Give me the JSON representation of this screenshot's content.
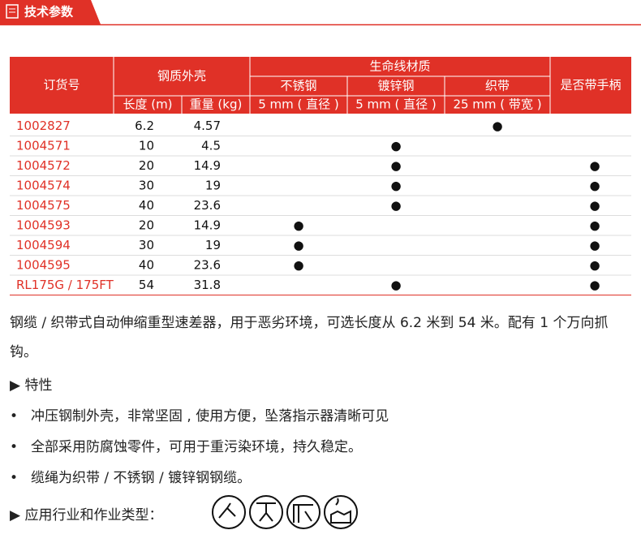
{
  "header": {
    "title": "技术参数"
  },
  "table": {
    "headers": {
      "order": "订货号",
      "housing": "钢质外壳",
      "material": "生命线材质",
      "handle": "是否带手柄",
      "length": "长度 (m)",
      "weight": "重量 (kg)",
      "stainless": "不锈钢",
      "galvanized": "镀锌钢",
      "webbing": "织带",
      "stainless_spec": "5 mm ( 直径 )",
      "galvanized_spec": "5 mm ( 直径 )",
      "webbing_spec": "25 mm ( 带宽 )"
    },
    "rows": [
      {
        "order": "1002827",
        "length": 6.2,
        "weight": 4.57,
        "stainless": null,
        "galvanized": null,
        "webbing": "●",
        "handle": null
      },
      {
        "order": "1004571",
        "length": 10,
        "weight": 4.5,
        "stainless": null,
        "galvanized": "●",
        "webbing": null,
        "handle": null
      },
      {
        "order": "1004572",
        "length": 20,
        "weight": 14.9,
        "stainless": null,
        "galvanized": "●",
        "webbing": null,
        "handle": "●"
      },
      {
        "order": "1004574",
        "length": 30,
        "weight": 19,
        "stainless": null,
        "galvanized": "●",
        "webbing": null,
        "handle": "●"
      },
      {
        "order": "1004575",
        "length": 40,
        "weight": 23.6,
        "stainless": null,
        "galvanized": "●",
        "webbing": null,
        "handle": "●"
      },
      {
        "order": "1004593",
        "length": 20,
        "weight": 14.9,
        "stainless": "●",
        "galvanized": null,
        "webbing": null,
        "handle": "●"
      },
      {
        "order": "1004594",
        "length": 30,
        "weight": 19,
        "stainless": "●",
        "galvanized": null,
        "webbing": null,
        "handle": "●"
      },
      {
        "order": "1004595",
        "length": 40,
        "weight": 23.6,
        "stainless": "●",
        "galvanized": null,
        "webbing": null,
        "handle": "●"
      },
      {
        "order": "RL175G / 175FT",
        "length": 54,
        "weight": 31.8,
        "stainless": null,
        "galvanized": "●",
        "webbing": null,
        "handle": "●"
      }
    ]
  },
  "description": "钢缆 / 织带式自动伸缩重型速差器，用于恶劣环境，可选长度从 6.2 米到 54 米。配有 1 个万向抓钩。",
  "features": {
    "title": "特性",
    "items": [
      "冲压钢制外壳，非常坚固 , 使用方便，坠落指示器清晰可见",
      "全部采用防腐蚀零件，可用于重污染环境，持久稳定。",
      "缆绳为织带 / 不锈钢 / 镀锌钢钢缆。"
    ]
  },
  "applications": {
    "title": "应用行业和作业类型："
  }
}
